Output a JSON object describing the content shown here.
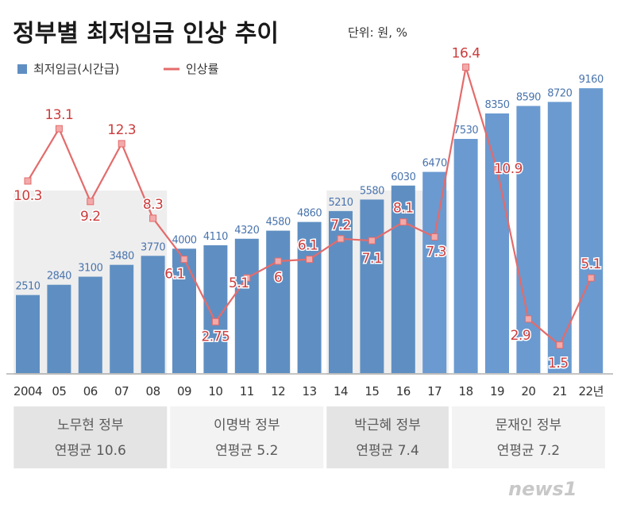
{
  "chart_data": {
    "type": "bar+line",
    "title": "정부별 최저임금 인상 추이",
    "unit_note": "단위: 원, %",
    "legend": [
      {
        "name": "최저임금(시간급)",
        "kind": "bar",
        "color": "#5f8fc2"
      },
      {
        "name": "인상률",
        "kind": "line",
        "color": "#e46b6b"
      }
    ],
    "categories": [
      "2004",
      "05",
      "06",
      "07",
      "08",
      "09",
      "10",
      "11",
      "12",
      "13",
      "14",
      "15",
      "16",
      "17",
      "18",
      "19",
      "20",
      "21",
      "22년"
    ],
    "series": [
      {
        "name": "최저임금(시간급)",
        "type": "bar",
        "values": [
          2510,
          2840,
          3100,
          3480,
          3770,
          4000,
          4110,
          4320,
          4580,
          4860,
          5210,
          5580,
          6030,
          6470,
          7530,
          8350,
          8590,
          8720,
          9160
        ],
        "labels": [
          "2510",
          "2840",
          "3100",
          "3480",
          "3770",
          "4000",
          "4110",
          "4320",
          "4580",
          "4860",
          "5210",
          "5580",
          "6030",
          "6470",
          "7530",
          "8350",
          "8590",
          "8720",
          "9160"
        ]
      },
      {
        "name": "인상률",
        "type": "line",
        "values": [
          10.3,
          13.1,
          9.2,
          12.3,
          8.3,
          6.1,
          2.75,
          5.1,
          6,
          6.1,
          7.2,
          7.1,
          8.1,
          7.3,
          16.4,
          10.9,
          2.9,
          1.5,
          5.1
        ],
        "labels": [
          "10.3",
          "13.1",
          "9.2",
          "12.3",
          "8.3",
          "6.1",
          "2.75",
          "5.1",
          "6",
          "6.1",
          "7.2",
          "7.1",
          "8.1",
          "7.3",
          "16.4",
          "10.9",
          "2.9",
          "1.5",
          "5.1"
        ]
      }
    ],
    "bar_ylim": [
      0,
      9700
    ],
    "line_ylim": [
      0,
      18.3
    ],
    "groups": [
      {
        "name": "노무현 정부",
        "avg": "연평균 10.6",
        "start": 0,
        "end": 4,
        "shade": true
      },
      {
        "name": "이명박 정부",
        "avg": "연평균 5.2",
        "start": 5,
        "end": 9,
        "shade": false
      },
      {
        "name": "박근혜 정부",
        "avg": "연평균 7.4",
        "start": 10,
        "end": 13,
        "shade": true
      },
      {
        "name": "문재인 정부",
        "avg": "연평균 7.2",
        "start": 14,
        "end": 18,
        "shade": false
      }
    ],
    "colors": {
      "bar": "#5f8fc2",
      "bar_highlight": "#6a9ad0",
      "bar_label": "#4a74ad",
      "line": "#e46b6b",
      "line_label": "#cc3b3b",
      "panel_shade": "#e4e4e4",
      "panel_white": "#f3f3f3",
      "group_text": "#5a5a5a"
    }
  },
  "source": {
    "logo_text": "news1"
  }
}
